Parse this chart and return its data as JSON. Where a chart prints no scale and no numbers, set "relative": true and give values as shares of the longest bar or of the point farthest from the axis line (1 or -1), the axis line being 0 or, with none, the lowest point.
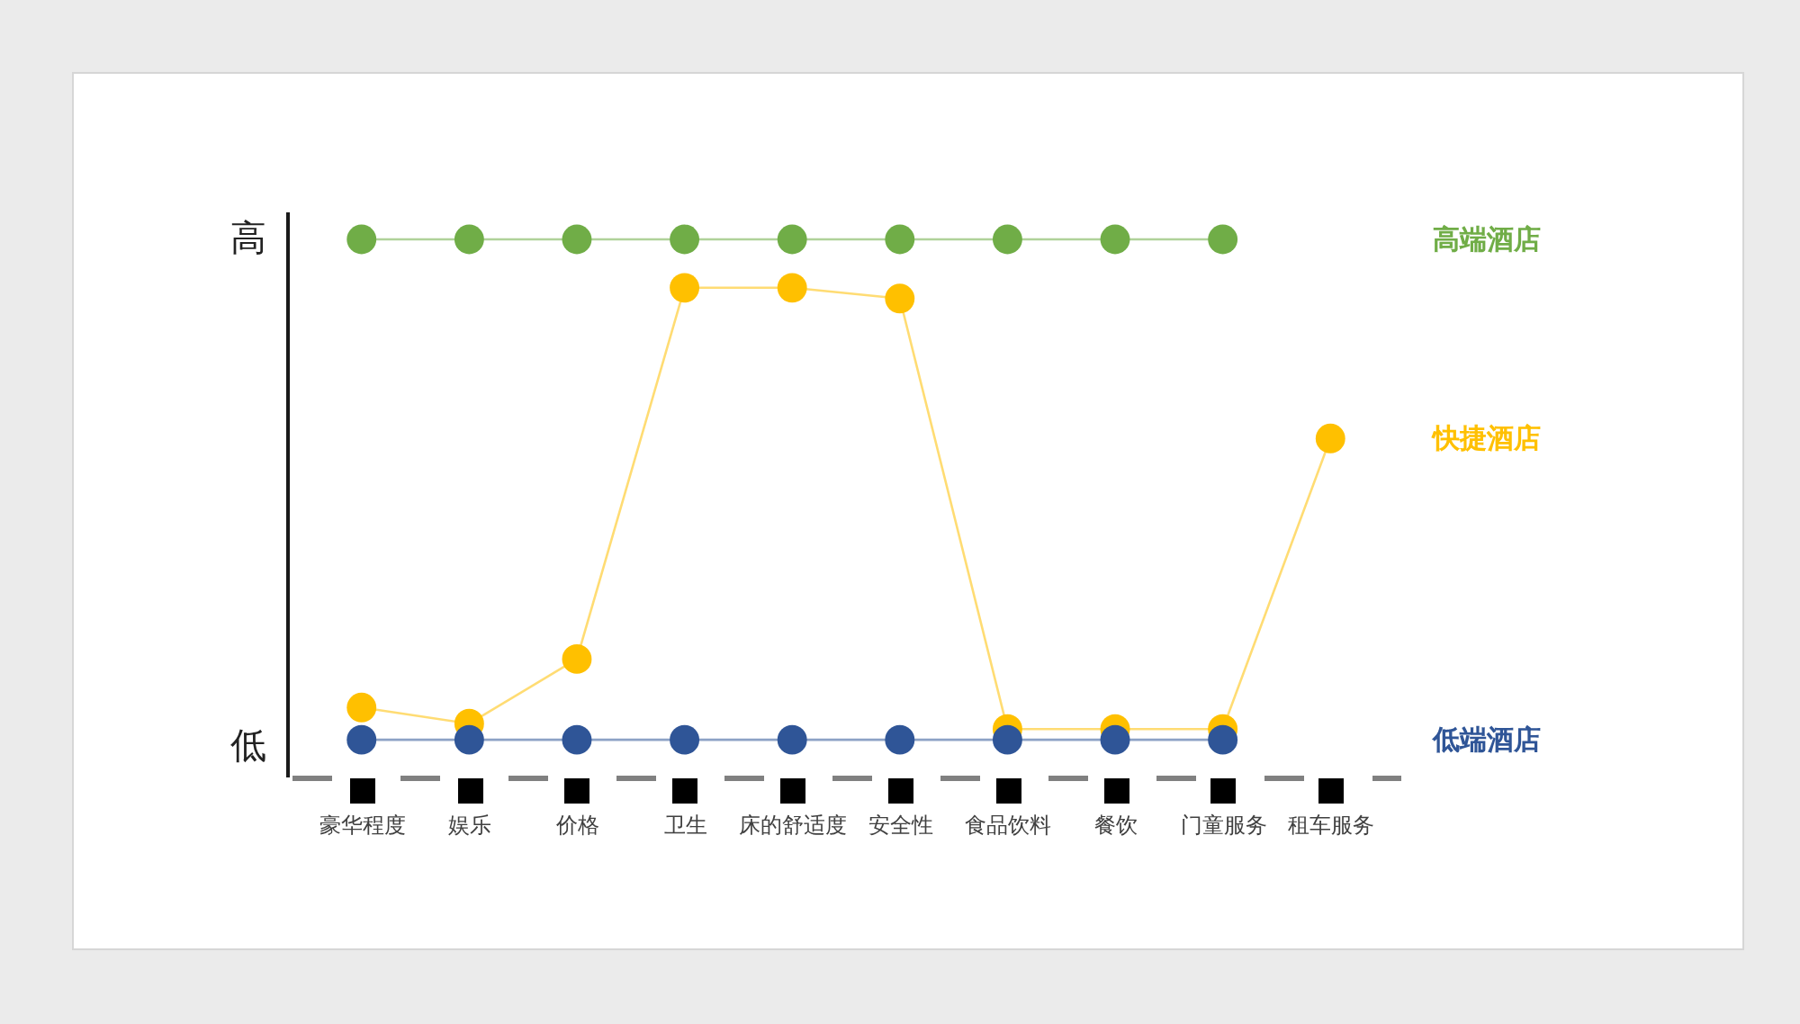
{
  "chart_data": {
    "type": "line",
    "relative": true,
    "marker": "circle",
    "legend": false,
    "categories": [
      "豪华程度",
      "娱乐",
      "价格",
      "卫生",
      "床的舒适度",
      "安全性",
      "食品饮料",
      "餐饮",
      "门童服务",
      "租车服务"
    ],
    "series": [
      {
        "name": "高端酒店",
        "color": "#70ad47",
        "values": [
          1,
          1,
          1,
          1,
          1,
          1,
          1,
          1,
          1,
          null
        ]
      },
      {
        "name": "快捷酒店",
        "color": "#ffc000",
        "values": [
          0.13,
          0.1,
          0.22,
          0.91,
          0.91,
          0.89,
          0.09,
          0.09,
          0.09,
          0.63
        ]
      },
      {
        "name": "低端酒店",
        "color": "#2f5597",
        "values": [
          0.07,
          0.07,
          0.07,
          0.07,
          0.07,
          0.07,
          0.07,
          0.07,
          0.07,
          null
        ]
      }
    ],
    "annotations": [
      "高",
      "低"
    ]
  }
}
